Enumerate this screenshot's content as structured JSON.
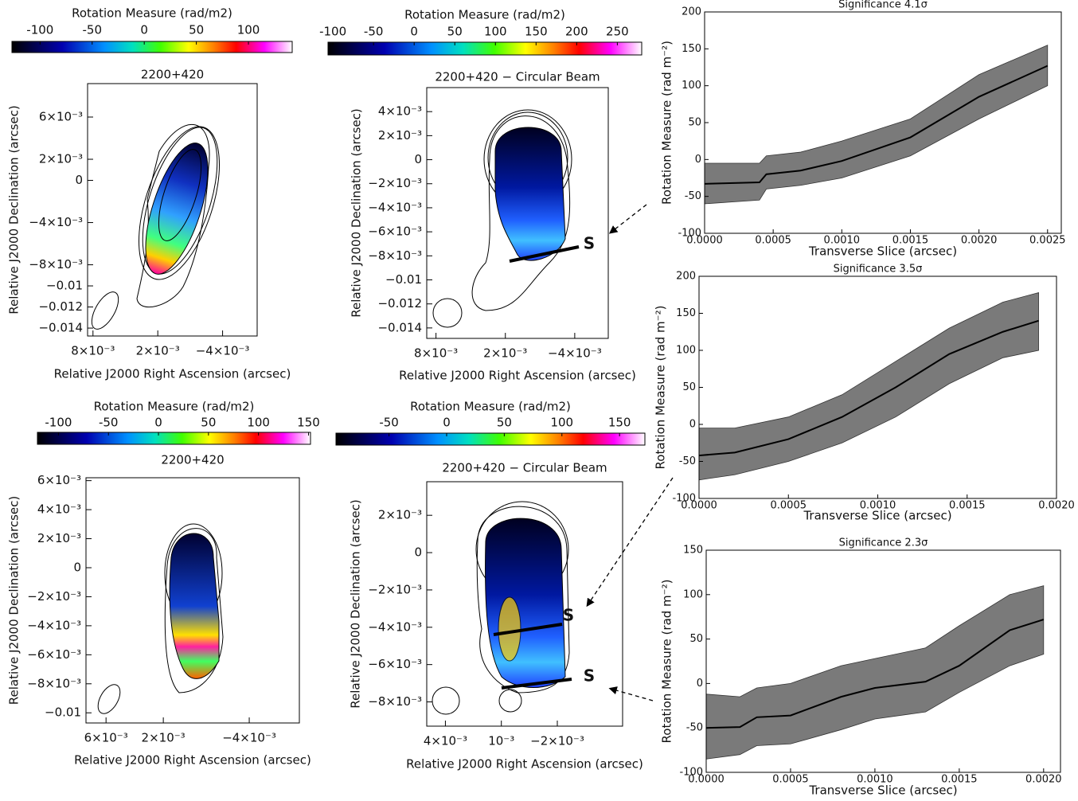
{
  "chart_data": [
    {
      "type": "image",
      "title": "2200+420",
      "colorbar_label": "Rotation Measure (rad/m2)",
      "colorbar_ticks": [
        -100,
        -50,
        0,
        50,
        100
      ],
      "colorbar_lim": [
        -127,
        142
      ],
      "xlabel": "Relative J2000 Right Ascension (arcsec)",
      "ylabel": "Relative J2000 Declination (arcsec)",
      "xlim": [
        0.0085,
        -0.0072
      ],
      "ylim": [
        -0.01475,
        0.00917
      ],
      "xticks": [
        {
          "value": 0.008,
          "label": "8×10⁻³"
        },
        {
          "value": 0.002,
          "label": "2×10⁻³"
        },
        {
          "value": -0.004,
          "label": "−4×10⁻³"
        }
      ],
      "yticks": [
        {
          "value": 0.006,
          "label": "6×10⁻³"
        },
        {
          "value": 0.002,
          "label": "2×10⁻³"
        },
        0,
        {
          "value": -0.004,
          "label": "−4×10⁻³"
        },
        {
          "value": -0.008,
          "label": "−8×10⁻³"
        },
        {
          "value": -0.01,
          "label": "−0.01"
        },
        {
          "value": -0.012,
          "label": "−0.012"
        },
        {
          "value": -0.014,
          "label": "−0.014"
        }
      ]
    },
    {
      "type": "image",
      "title": "2200+420 − Circular Beam",
      "colorbar_label": "Rotation Measure (rad/m2)",
      "colorbar_ticks": [
        -100,
        -50,
        0,
        50,
        100,
        150,
        200,
        250
      ],
      "colorbar_lim": [
        -106,
        280
      ],
      "xlabel": "Relative J2000 Right Ascension (arcsec)",
      "ylabel": "Relative J2000 Declination (arcsec)",
      "xlim": [
        0.0088,
        -0.0069
      ],
      "ylim": [
        -0.01487,
        0.006
      ],
      "xticks": [
        {
          "value": 0.008,
          "label": "8×10⁻³"
        },
        {
          "value": 0.002,
          "label": "2×10⁻³"
        },
        {
          "value": -0.004,
          "label": "−4×10⁻³"
        }
      ],
      "yticks": [
        {
          "value": 0.004,
          "label": "4×10⁻³"
        },
        {
          "value": 0.002,
          "label": "2×10⁻³"
        },
        0,
        {
          "value": -0.002,
          "label": "−2×10⁻³"
        },
        {
          "value": -0.004,
          "label": "−4×10⁻³"
        },
        {
          "value": -0.006,
          "label": "−6×10⁻³"
        },
        {
          "value": -0.008,
          "label": "−8×10⁻³"
        },
        {
          "value": -0.01,
          "label": "−0.01"
        },
        {
          "value": -0.012,
          "label": "−0.012"
        },
        {
          "value": -0.014,
          "label": "−0.014"
        }
      ],
      "slice_labels": [
        "S"
      ]
    },
    {
      "type": "image",
      "title": "2200+420",
      "colorbar_label": "Rotation Measure (rad/m2)",
      "colorbar_ticks": [
        -100,
        -50,
        0,
        50,
        100,
        150
      ],
      "colorbar_lim": [
        -121,
        152
      ],
      "xlabel": "Relative J2000 Right Ascension (arcsec)",
      "ylabel": "Relative J2000 Declination (arcsec)",
      "xlim": [
        0.0074,
        -0.0075
      ],
      "ylim": [
        -0.0107,
        0.0062
      ],
      "xticks": [
        {
          "value": 0.006,
          "label": "6×10⁻³"
        },
        {
          "value": 0.002,
          "label": "2×10⁻³"
        },
        {
          "value": -0.004,
          "label": "−4×10⁻³"
        }
      ],
      "yticks": [
        {
          "value": 0.006,
          "label": "6×10⁻³"
        },
        {
          "value": 0.004,
          "label": "4×10⁻³"
        },
        {
          "value": 0.002,
          "label": "2×10⁻³"
        },
        0,
        {
          "value": -0.002,
          "label": "−2×10⁻³"
        },
        {
          "value": -0.004,
          "label": "−4×10⁻³"
        },
        {
          "value": -0.006,
          "label": "−6×10⁻³"
        },
        {
          "value": -0.008,
          "label": "−8×10⁻³"
        },
        {
          "value": -0.01,
          "label": "−0.01"
        }
      ]
    },
    {
      "type": "image",
      "title": "2200+420 − Circular Beam",
      "colorbar_label": "Rotation Measure (rad/m2)",
      "colorbar_ticks": [
        -50,
        0,
        50,
        100,
        150
      ],
      "colorbar_lim": [
        -96,
        172
      ],
      "xlabel": "Relative J2000 Right Ascension (arcsec)",
      "ylabel": "Relative J2000 Declination (arcsec)",
      "xlim": [
        0.005,
        -0.0055
      ],
      "ylim": [
        -0.0093,
        0.0038
      ],
      "xticks": [
        {
          "value": 0.004,
          "label": "4×10⁻³"
        },
        {
          "value": 0.001,
          "label": "10⁻³"
        },
        {
          "value": -0.002,
          "label": "−2×10⁻³"
        }
      ],
      "yticks": [
        {
          "value": 0.002,
          "label": "2×10⁻³"
        },
        0,
        {
          "value": -0.002,
          "label": "−2×10⁻³"
        },
        {
          "value": -0.004,
          "label": "−4×10⁻³"
        },
        {
          "value": -0.006,
          "label": "−6×10⁻³"
        },
        {
          "value": -0.008,
          "label": "−8×10⁻³"
        }
      ],
      "slice_labels": [
        "S",
        "S"
      ]
    },
    {
      "type": "line",
      "title": "Significance 4.1σ",
      "xlabel": "Transverse Slice (arcsec)",
      "ylabel": "Rotation Measure (rad m⁻²)",
      "color": "#000000",
      "band_color": "#7a7a7a",
      "x": [
        0,
        0.0004,
        0.00045,
        0.0007,
        0.001,
        0.0015,
        0.002,
        0.0025
      ],
      "values": [
        -33,
        -31,
        -20,
        -15,
        -2,
        30,
        85,
        127
      ],
      "lower": [
        -60,
        -55,
        -40,
        -35,
        -25,
        5,
        55,
        100
      ],
      "upper": [
        -5,
        -5,
        5,
        10,
        25,
        55,
        115,
        155
      ],
      "xlim": [
        0,
        0.0026
      ],
      "ylim": [
        -100,
        200
      ],
      "xticks": [
        {
          "value": 0,
          "label": "0.0000"
        },
        0.0005,
        {
          "value": 0.001,
          "label": "0.0010"
        },
        0.0015,
        {
          "value": 0.002,
          "label": "0.0020"
        },
        0.0025
      ],
      "yticks": [
        -100,
        -50,
        0,
        50,
        100,
        150,
        200
      ]
    },
    {
      "type": "line",
      "title": "Significance 3.5σ",
      "xlabel": "Transverse Slice (arcsec)",
      "ylabel": "Rotation Measure (rad m⁻²)",
      "color": "#000000",
      "band_color": "#7a7a7a",
      "x": [
        0,
        0.0002,
        0.0005,
        0.0008,
        0.0011,
        0.0014,
        0.0017,
        0.0019
      ],
      "values": [
        -42,
        -38,
        -20,
        10,
        50,
        95,
        125,
        140
      ],
      "lower": [
        -75,
        -68,
        -50,
        -25,
        10,
        55,
        90,
        100
      ],
      "upper": [
        -5,
        -5,
        10,
        40,
        85,
        130,
        165,
        178
      ],
      "xlim": [
        0,
        0.002
      ],
      "ylim": [
        -100,
        200
      ],
      "xticks": [
        {
          "value": 0,
          "label": "0.0000"
        },
        0.0005,
        {
          "value": 0.001,
          "label": "0.0010"
        },
        0.0015,
        {
          "value": 0.002,
          "label": "0.0020"
        }
      ],
      "yticks": [
        -100,
        -50,
        0,
        50,
        100,
        150,
        200
      ]
    },
    {
      "type": "line",
      "title": "Significance 2.3σ",
      "xlabel": "Transverse Slice (arcsec)",
      "ylabel": "Rotation Measure (rad m⁻²)",
      "color": "#000000",
      "band_color": "#7a7a7a",
      "x": [
        0,
        0.0002,
        0.0003,
        0.0005,
        0.0008,
        0.001,
        0.0013,
        0.0015,
        0.0018,
        0.002
      ],
      "values": [
        -50,
        -49,
        -38,
        -36,
        -15,
        -5,
        2,
        20,
        60,
        72
      ],
      "lower": [
        -85,
        -80,
        -70,
        -68,
        -52,
        -40,
        -32,
        -10,
        20,
        33
      ],
      "upper": [
        -12,
        -15,
        -5,
        0,
        20,
        28,
        40,
        65,
        100,
        110
      ],
      "xlim": [
        0,
        0.0021
      ],
      "ylim": [
        -100,
        150
      ],
      "xticks": [
        {
          "value": 0,
          "label": "0.0000"
        },
        0.0005,
        {
          "value": 0.001,
          "label": "0.0010"
        },
        0.0015,
        {
          "value": 0.002,
          "label": "0.0020"
        }
      ],
      "yticks": [
        -100,
        -50,
        0,
        50,
        100,
        150
      ]
    }
  ]
}
